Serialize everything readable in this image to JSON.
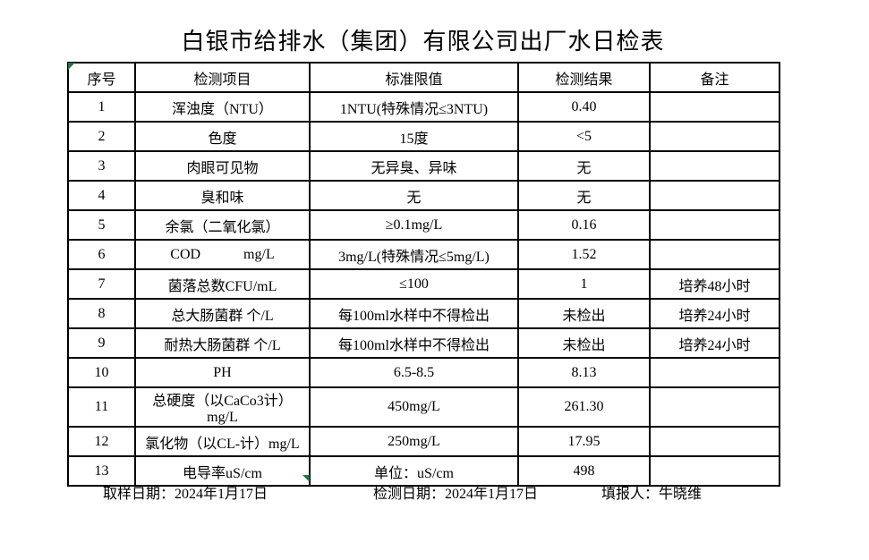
{
  "page": {
    "title": "白银市给排水（集团）有限公司出厂水日检表"
  },
  "table": {
    "headers": [
      "序号",
      "检测项目",
      "标准限值",
      "检测结果",
      "备注"
    ],
    "rows": [
      [
        "1",
        "浑浊度（NTU）",
        "1NTU(特殊情况≤3NTU)",
        "0.40",
        ""
      ],
      [
        "2",
        "色度",
        "15度",
        "<5",
        ""
      ],
      [
        "3",
        "肉眼可见物",
        "无异臭、异味",
        "无",
        ""
      ],
      [
        "4",
        "臭和味",
        "无",
        "无",
        ""
      ],
      [
        "5",
        "余氯（二氧化氯）",
        "≥0.1mg/L",
        "0.16",
        ""
      ],
      [
        "6",
        "COD            mg/L",
        "3mg/L(特殊情况≤5mg/L)",
        "1.52",
        ""
      ],
      [
        "7",
        "菌落总数CFU/mL",
        "≤100",
        "1",
        "培养48小时"
      ],
      [
        "8",
        "总大肠菌群 个/L",
        "每100ml水样中不得检出",
        "未检出",
        "培养24小时"
      ],
      [
        "9",
        "耐热大肠菌群 个/L",
        "每100ml水样中不得检出",
        "未检出",
        "培养24小时"
      ],
      [
        "10",
        "PH",
        "6.5-8.5",
        "8.13",
        ""
      ],
      [
        "11",
        "总硬度（以CaCo3计）mg/L",
        "450mg/L",
        "261.30",
        ""
      ],
      [
        "12",
        "氯化物（以CL-计）mg/L",
        "250mg/L",
        "17.95",
        ""
      ],
      [
        "13",
        "电导率uS/cm",
        "单位：uS/cm",
        "498",
        ""
      ]
    ]
  },
  "footer": {
    "sampling_date": "取样日期：2024年1月17日",
    "test_date": "检测日期：2024年1月17日",
    "reporter": "填报人：牛晓维"
  },
  "colors": {
    "background": "#ffffff",
    "border": "#000000",
    "text": "#000000",
    "error_indicator_green": "#217346"
  },
  "icons": {
    "header_corner_indicator": "cell-error-indicator-icon",
    "bottom_corner_indicator": "cell-error-indicator-icon"
  }
}
